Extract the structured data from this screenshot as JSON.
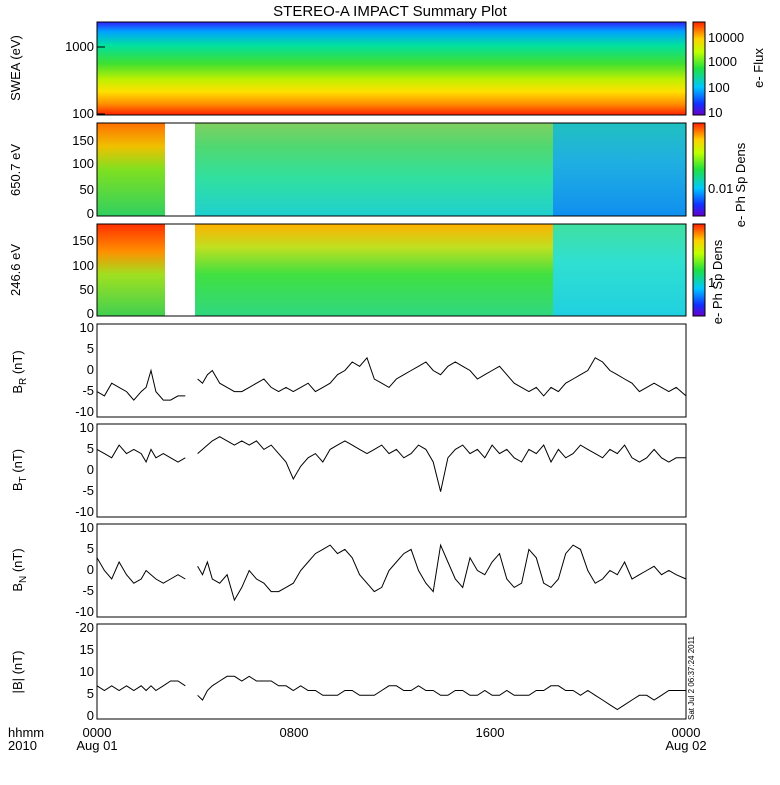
{
  "title": "STEREO-A IMPACT Summary Plot",
  "stamp": "Sat Jul  2 06:37:24 2011",
  "time_axis": {
    "row1": [
      "0000",
      "0800",
      "1600",
      "0000"
    ],
    "row2": [
      "Aug 01",
      "",
      "",
      "Aug 02"
    ],
    "left_label_1": "hhmm",
    "left_label_2": "2010"
  },
  "chart_data": [
    {
      "type": "heatmap",
      "ylabel": "SWEA (eV)",
      "colorbar_label": "e- Flux",
      "yticks": [
        "1000",
        "100"
      ],
      "colorbar_ticks": [
        "10000",
        "1000",
        "100",
        "10"
      ],
      "log_scale": true
    },
    {
      "type": "heatmap",
      "ylabel": "650.7 eV",
      "colorbar_label": "e- Ph Sp Dens",
      "yticks": [
        "150",
        "100",
        "50",
        "0"
      ],
      "colorbar_ticks": [
        "0.01"
      ],
      "data_gap_hours": [
        2.8,
        4.1
      ]
    },
    {
      "type": "heatmap",
      "ylabel": "246.6 eV",
      "colorbar_label": "e- Ph Sp Dens",
      "yticks": [
        "150",
        "100",
        "50",
        "0"
      ],
      "colorbar_ticks": [
        "1"
      ],
      "data_gap_hours": [
        2.8,
        4.1
      ]
    },
    {
      "type": "line",
      "ylabel_main": "B",
      "ylabel_sub": "R",
      "ylabel_tail": " (nT)",
      "ylim": [
        -11,
        11
      ],
      "yticks": [
        "10",
        "5",
        "0",
        "-5",
        "-10"
      ],
      "x_hours": [
        0,
        0.3,
        0.6,
        0.9,
        1.2,
        1.5,
        1.8,
        2.0,
        2.2,
        2.4,
        2.7,
        3.0,
        3.3,
        3.6,
        4.1,
        4.3,
        4.5,
        4.7,
        5.0,
        5.3,
        5.6,
        5.9,
        6.2,
        6.5,
        6.8,
        7.1,
        7.4,
        7.7,
        8.0,
        8.3,
        8.6,
        8.9,
        9.2,
        9.5,
        9.8,
        10.1,
        10.4,
        10.7,
        11.0,
        11.3,
        11.6,
        11.9,
        12.2,
        12.5,
        12.8,
        13.1,
        13.4,
        13.7,
        14.0,
        14.3,
        14.6,
        14.9,
        15.2,
        15.5,
        15.8,
        16.1,
        16.4,
        16.7,
        17.0,
        17.3,
        17.6,
        17.9,
        18.2,
        18.5,
        18.8,
        19.1,
        19.4,
        19.7,
        20.0,
        20.3,
        20.6,
        20.9,
        21.2,
        21.5,
        21.8,
        22.1,
        22.4,
        22.7,
        23.0,
        23.3,
        23.6,
        24.0
      ],
      "y": [
        -5,
        -6,
        -3,
        -4,
        -5,
        -7,
        -5,
        -4,
        0,
        -5,
        -7,
        -7,
        -6,
        -6,
        -2,
        -3,
        -1,
        0,
        -3,
        -4,
        -5,
        -5,
        -4,
        -3,
        -2,
        -4,
        -5,
        -4,
        -5,
        -4,
        -3,
        -5,
        -4,
        -3,
        -1,
        0,
        2,
        1,
        3,
        -2,
        -3,
        -4,
        -2,
        -1,
        0,
        1,
        2,
        0,
        -1,
        1,
        2,
        1,
        0,
        -2,
        -1,
        0,
        1,
        -1,
        -3,
        -4,
        -5,
        -4,
        -6,
        -4,
        -5,
        -3,
        -2,
        -1,
        0,
        3,
        2,
        0,
        -1,
        -2,
        -3,
        -5,
        -4,
        -3,
        -4,
        -5,
        -4,
        -6
      ],
      "gap_after_index": 13
    },
    {
      "type": "line",
      "ylabel_main": "B",
      "ylabel_sub": "T",
      "ylabel_tail": " (nT)",
      "ylim": [
        -11,
        11
      ],
      "yticks": [
        "10",
        "5",
        "0",
        "-5",
        "-10"
      ],
      "x_hours": [
        0,
        0.3,
        0.6,
        0.9,
        1.2,
        1.5,
        1.8,
        2.0,
        2.2,
        2.4,
        2.7,
        3.0,
        3.3,
        3.6,
        4.1,
        4.3,
        4.5,
        4.7,
        5.0,
        5.3,
        5.6,
        5.9,
        6.2,
        6.5,
        6.8,
        7.1,
        7.4,
        7.7,
        8.0,
        8.3,
        8.6,
        8.9,
        9.2,
        9.5,
        9.8,
        10.1,
        10.4,
        10.7,
        11.0,
        11.3,
        11.6,
        11.9,
        12.2,
        12.5,
        12.8,
        13.1,
        13.4,
        13.7,
        14.0,
        14.3,
        14.6,
        14.9,
        15.2,
        15.5,
        15.8,
        16.1,
        16.4,
        16.7,
        17.0,
        17.3,
        17.6,
        17.9,
        18.2,
        18.5,
        18.8,
        19.1,
        19.4,
        19.7,
        20.0,
        20.3,
        20.6,
        20.9,
        21.2,
        21.5,
        21.8,
        22.1,
        22.4,
        22.7,
        23.0,
        23.3,
        23.6,
        24.0
      ],
      "y": [
        5,
        4,
        3,
        6,
        4,
        5,
        4,
        2,
        5,
        3,
        4,
        3,
        2,
        3,
        4,
        5,
        6,
        7,
        8,
        7,
        6,
        7,
        6,
        7,
        5,
        6,
        4,
        2,
        -2,
        1,
        3,
        4,
        2,
        5,
        6,
        7,
        6,
        5,
        4,
        5,
        6,
        4,
        5,
        3,
        4,
        6,
        5,
        2,
        -5,
        3,
        5,
        6,
        4,
        5,
        3,
        6,
        4,
        5,
        3,
        2,
        5,
        4,
        6,
        2,
        5,
        3,
        4,
        6,
        5,
        4,
        3,
        5,
        4,
        6,
        3,
        2,
        3,
        5,
        3,
        2,
        3,
        3
      ],
      "gap_after_index": 13
    },
    {
      "type": "line",
      "ylabel_main": "B",
      "ylabel_sub": "N",
      "ylabel_tail": " (nT)",
      "ylim": [
        -11,
        11
      ],
      "yticks": [
        "10",
        "5",
        "0",
        "-5",
        "-10"
      ],
      "x_hours": [
        0,
        0.3,
        0.6,
        0.9,
        1.2,
        1.5,
        1.8,
        2.0,
        2.2,
        2.4,
        2.7,
        3.0,
        3.3,
        3.6,
        4.1,
        4.3,
        4.5,
        4.7,
        5.0,
        5.3,
        5.6,
        5.9,
        6.2,
        6.5,
        6.8,
        7.1,
        7.4,
        7.7,
        8.0,
        8.3,
        8.6,
        8.9,
        9.2,
        9.5,
        9.8,
        10.1,
        10.4,
        10.7,
        11.0,
        11.3,
        11.6,
        11.9,
        12.2,
        12.5,
        12.8,
        13.1,
        13.4,
        13.7,
        14.0,
        14.3,
        14.6,
        14.9,
        15.2,
        15.5,
        15.8,
        16.1,
        16.4,
        16.7,
        17.0,
        17.3,
        17.6,
        17.9,
        18.2,
        18.5,
        18.8,
        19.1,
        19.4,
        19.7,
        20.0,
        20.3,
        20.6,
        20.9,
        21.2,
        21.5,
        21.8,
        22.1,
        22.4,
        22.7,
        23.0,
        23.3,
        23.6,
        24.0
      ],
      "y": [
        3,
        0,
        -2,
        2,
        -1,
        -3,
        -2,
        0,
        -1,
        -2,
        -3,
        -2,
        -1,
        -2,
        1,
        -1,
        2,
        -2,
        -3,
        -1,
        -7,
        -4,
        0,
        -2,
        -3,
        -5,
        -5,
        -4,
        -3,
        0,
        2,
        4,
        5,
        6,
        4,
        5,
        3,
        -1,
        -3,
        -5,
        -4,
        0,
        2,
        4,
        5,
        0,
        -3,
        -5,
        6,
        2,
        -2,
        -4,
        3,
        0,
        -1,
        2,
        4,
        -2,
        -4,
        -3,
        5,
        3,
        -3,
        -4,
        -2,
        4,
        6,
        5,
        0,
        -3,
        -2,
        0,
        -1,
        2,
        -2,
        -1,
        0,
        1,
        -1,
        0,
        -1,
        -2
      ],
      "gap_after_index": 13
    },
    {
      "type": "line",
      "ylabel": "|B| (nT)",
      "ylim": [
        0,
        20
      ],
      "yticks": [
        "20",
        "15",
        "10",
        "5",
        "0"
      ],
      "x_hours": [
        0,
        0.3,
        0.6,
        0.9,
        1.2,
        1.5,
        1.8,
        2.0,
        2.2,
        2.4,
        2.7,
        3.0,
        3.3,
        3.6,
        4.1,
        4.3,
        4.5,
        4.7,
        5.0,
        5.3,
        5.6,
        5.9,
        6.2,
        6.5,
        6.8,
        7.1,
        7.4,
        7.7,
        8.0,
        8.3,
        8.6,
        8.9,
        9.2,
        9.5,
        9.8,
        10.1,
        10.4,
        10.7,
        11.0,
        11.3,
        11.6,
        11.9,
        12.2,
        12.5,
        12.8,
        13.1,
        13.4,
        13.7,
        14.0,
        14.3,
        14.6,
        14.9,
        15.2,
        15.5,
        15.8,
        16.1,
        16.4,
        16.7,
        17.0,
        17.3,
        17.6,
        17.9,
        18.2,
        18.5,
        18.8,
        19.1,
        19.4,
        19.7,
        20.0,
        20.3,
        20.6,
        20.9,
        21.2,
        21.5,
        21.8,
        22.1,
        22.4,
        22.7,
        23.0,
        23.3,
        23.6,
        24.0
      ],
      "y": [
        7,
        6,
        7,
        6,
        7,
        6,
        7,
        6,
        7,
        6,
        7,
        8,
        8,
        7,
        5,
        4,
        6,
        7,
        8,
        9,
        9,
        8,
        9,
        8,
        8,
        8,
        7,
        7,
        6,
        7,
        6,
        6,
        5,
        5,
        5,
        6,
        6,
        5,
        5,
        5,
        6,
        7,
        7,
        6,
        6,
        7,
        6,
        6,
        5,
        5,
        6,
        6,
        5,
        5,
        6,
        5,
        5,
        6,
        5,
        5,
        5,
        6,
        6,
        7,
        7,
        6,
        6,
        5,
        6,
        5,
        4,
        3,
        2,
        3,
        4,
        5,
        5,
        4,
        5,
        6,
        6,
        6
      ],
      "gap_after_index": 13
    }
  ]
}
